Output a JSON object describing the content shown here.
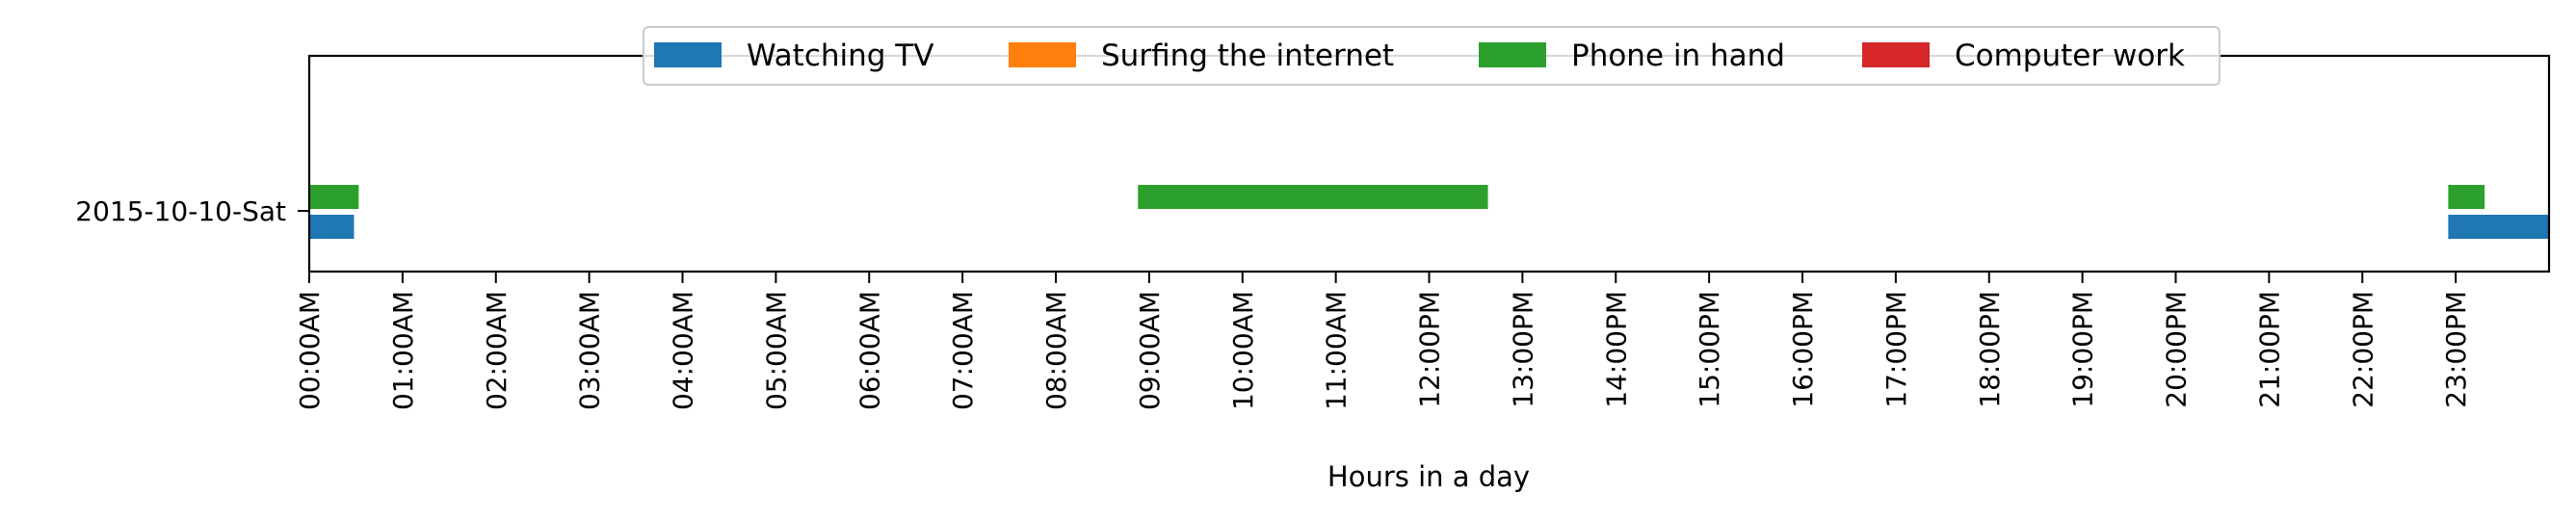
{
  "chart_data": {
    "type": "bar",
    "orientation": "horizontal",
    "xlabel": "Hours in a day",
    "xlim": [
      0,
      24
    ],
    "x_ticks": [
      "00:00AM",
      "01:00AM",
      "02:00AM",
      "03:00AM",
      "04:00AM",
      "05:00AM",
      "06:00AM",
      "07:00AM",
      "08:00AM",
      "09:00AM",
      "10:00AM",
      "11:00AM",
      "12:00PM",
      "13:00PM",
      "14:00PM",
      "15:00PM",
      "16:00PM",
      "17:00PM",
      "18:00PM",
      "19:00PM",
      "20:00PM",
      "21:00PM",
      "22:00PM",
      "23:00PM"
    ],
    "categories": [
      "2015-10-10-Sat"
    ],
    "grid": false,
    "legend_position": "top-center",
    "series": [
      {
        "name": "Watching TV",
        "color": "#1f77b4",
        "lane": 0,
        "intervals": [
          {
            "start": 0.0,
            "end": 0.48
          },
          {
            "start": 22.92,
            "end": 24.0
          }
        ]
      },
      {
        "name": "Surfing the internet",
        "color": "#ff7f0e",
        "lane": 1,
        "intervals": []
      },
      {
        "name": "Phone in hand",
        "color": "#2ca02c",
        "lane": 1,
        "intervals": [
          {
            "start": 0.0,
            "end": 0.53
          },
          {
            "start": 8.88,
            "end": 12.63
          },
          {
            "start": 22.92,
            "end": 23.31
          }
        ]
      },
      {
        "name": "Computer work",
        "color": "#d62728",
        "lane": 1,
        "intervals": []
      }
    ]
  }
}
